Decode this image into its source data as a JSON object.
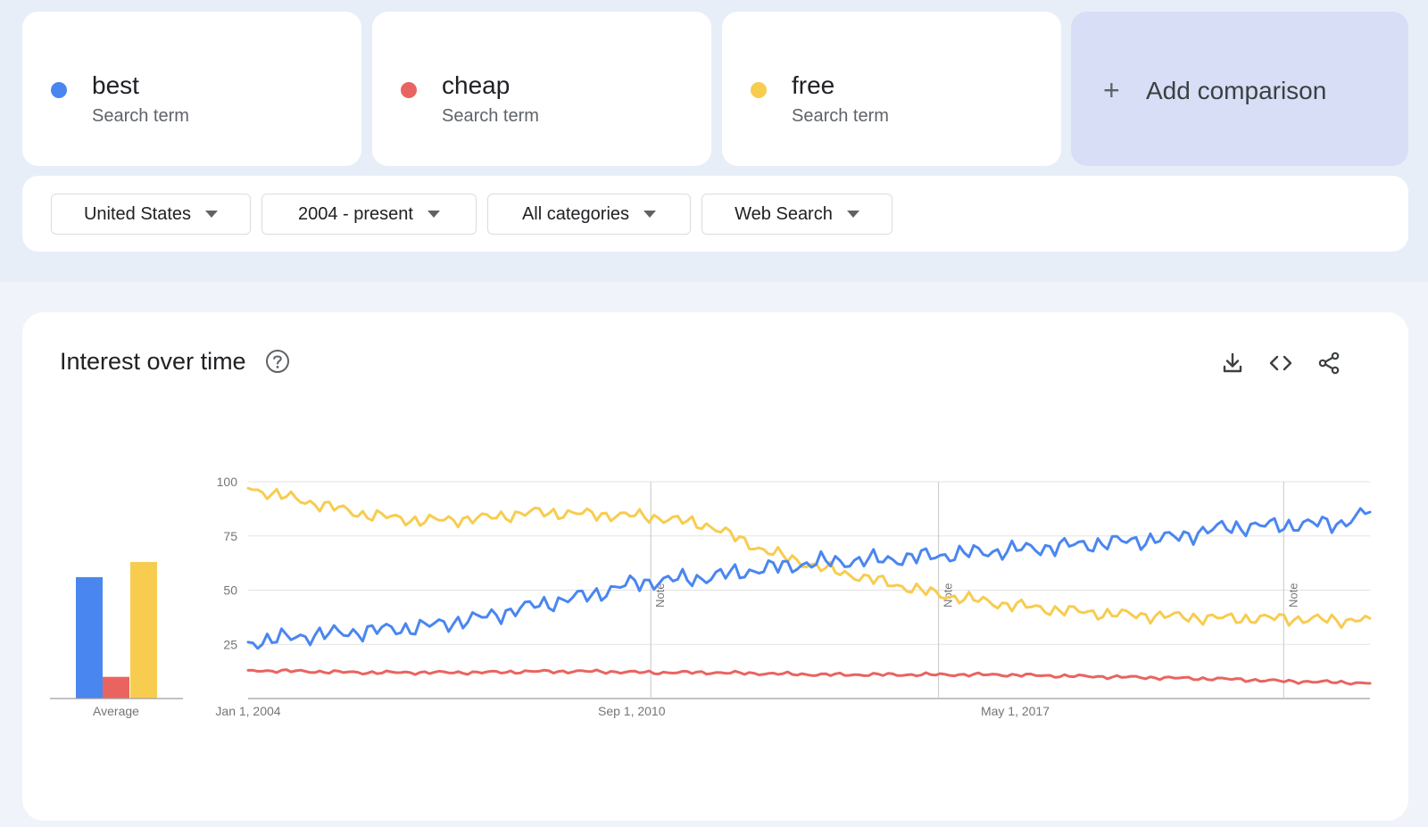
{
  "terms": [
    {
      "name": "best",
      "subtitle": "Search term",
      "color": "#4a86f0"
    },
    {
      "name": "cheap",
      "subtitle": "Search term",
      "color": "#e96460"
    },
    {
      "name": "free",
      "subtitle": "Search term",
      "color": "#f7cc4f"
    }
  ],
  "add_comparison": {
    "icon": "plus-icon",
    "label": "Add comparison"
  },
  "filters": [
    {
      "label": "United States"
    },
    {
      "label": "2004 - present"
    },
    {
      "label": "All categories"
    },
    {
      "label": "Web Search"
    }
  ],
  "panel": {
    "title": "Interest over time",
    "icons": [
      "help-icon",
      "download-icon",
      "embed-icon",
      "share-icon"
    ]
  },
  "chart_data": {
    "type": "line",
    "x_tick_labels": [
      "Jan 1, 2004",
      "Sep 1, 2010",
      "May 1, 2017"
    ],
    "y_ticks": [
      25,
      50,
      75,
      100
    ],
    "ylim": [
      0,
      100
    ],
    "grid": true,
    "notes": [
      {
        "x": "Jan 1, 2011",
        "label": "Note"
      },
      {
        "x": "Jan 1, 2016",
        "label": "Note"
      },
      {
        "x": "Jan 1, 2022",
        "label": "Note"
      }
    ],
    "series": [
      {
        "name": "best",
        "color": "#4a86f0",
        "keypoints": [
          [
            2004.0,
            26
          ],
          [
            2005.0,
            29
          ],
          [
            2006.0,
            31
          ],
          [
            2007.0,
            33
          ],
          [
            2008.0,
            37
          ],
          [
            2009.0,
            43
          ],
          [
            2010.0,
            48
          ],
          [
            2010.67,
            53
          ],
          [
            2011.0,
            54
          ],
          [
            2012.0,
            56
          ],
          [
            2013.0,
            60
          ],
          [
            2014.0,
            63
          ],
          [
            2015.0,
            64
          ],
          [
            2016.0,
            66
          ],
          [
            2017.0,
            68
          ],
          [
            2018.0,
            70
          ],
          [
            2019.0,
            72
          ],
          [
            2020.0,
            74
          ],
          [
            2021.0,
            79
          ],
          [
            2022.0,
            80
          ],
          [
            2023.0,
            81
          ],
          [
            2023.5,
            86
          ]
        ]
      },
      {
        "name": "cheap",
        "color": "#e96460",
        "keypoints": [
          [
            2004.0,
            13
          ],
          [
            2005.0,
            12.5
          ],
          [
            2006.0,
            12
          ],
          [
            2007.0,
            12
          ],
          [
            2008.0,
            12
          ],
          [
            2009.0,
            12.5
          ],
          [
            2010.0,
            12.5
          ],
          [
            2011.0,
            12
          ],
          [
            2012.0,
            12
          ],
          [
            2013.0,
            11.5
          ],
          [
            2014.0,
            11
          ],
          [
            2015.0,
            11
          ],
          [
            2016.0,
            11
          ],
          [
            2017.0,
            11
          ],
          [
            2018.0,
            10.5
          ],
          [
            2019.0,
            10
          ],
          [
            2020.0,
            9.5
          ],
          [
            2021.0,
            9
          ],
          [
            2022.0,
            8
          ],
          [
            2023.0,
            7.5
          ],
          [
            2023.5,
            7
          ]
        ]
      },
      {
        "name": "free",
        "color": "#f7cc4f",
        "keypoints": [
          [
            2004.0,
            97
          ],
          [
            2005.0,
            91
          ],
          [
            2006.0,
            85
          ],
          [
            2007.0,
            82
          ],
          [
            2008.0,
            83
          ],
          [
            2009.0,
            86
          ],
          [
            2010.0,
            85
          ],
          [
            2011.0,
            84
          ],
          [
            2012.0,
            80
          ],
          [
            2013.0,
            68
          ],
          [
            2014.0,
            60
          ],
          [
            2015.0,
            54
          ],
          [
            2016.0,
            48
          ],
          [
            2017.0,
            44
          ],
          [
            2018.0,
            41
          ],
          [
            2019.0,
            39
          ],
          [
            2020.0,
            38
          ],
          [
            2021.0,
            37
          ],
          [
            2022.0,
            37
          ],
          [
            2023.0,
            36
          ],
          [
            2023.5,
            37
          ]
        ]
      }
    ],
    "average": {
      "label": "Average",
      "values": [
        {
          "name": "best",
          "value": 56
        },
        {
          "name": "cheap",
          "value": 10
        },
        {
          "name": "free",
          "value": 63
        }
      ]
    }
  }
}
